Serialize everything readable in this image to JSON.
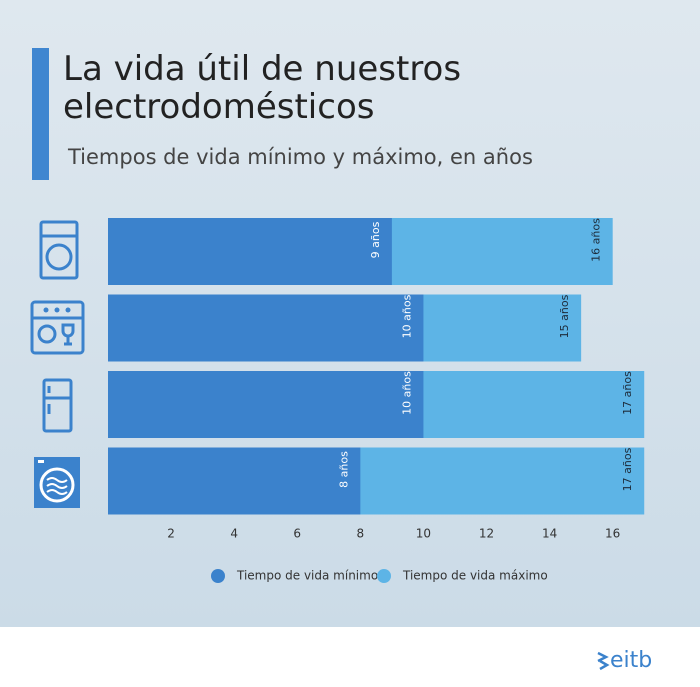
{
  "chart_data": {
    "type": "bar",
    "orientation": "horizontal",
    "title": "La vida útil de nuestros electrodomésticos",
    "subtitle": "Tiempos de vida mínimo y máximo, en años",
    "categories": [
      null,
      null,
      null,
      null
    ],
    "series": [
      {
        "name": "Tiempo de vida máximo",
        "color": "#5db4e6",
        "values": [
          16,
          15,
          17,
          17
        ],
        "value_labels": [
          "16 años",
          "15 años",
          "17 años",
          "17 años"
        ]
      },
      {
        "name": "Tiempo de vida mínimo",
        "color": "#3b82cc",
        "values": [
          9,
          10,
          10,
          8
        ],
        "value_labels": [
          "9 años",
          "10 años",
          "10 años",
          "8 años"
        ]
      }
    ],
    "xlim": [
      0,
      17.5
    ],
    "xticks": [
      2,
      4,
      6,
      8,
      10,
      12,
      14,
      16
    ],
    "grid": false
  },
  "brand": "eitb"
}
